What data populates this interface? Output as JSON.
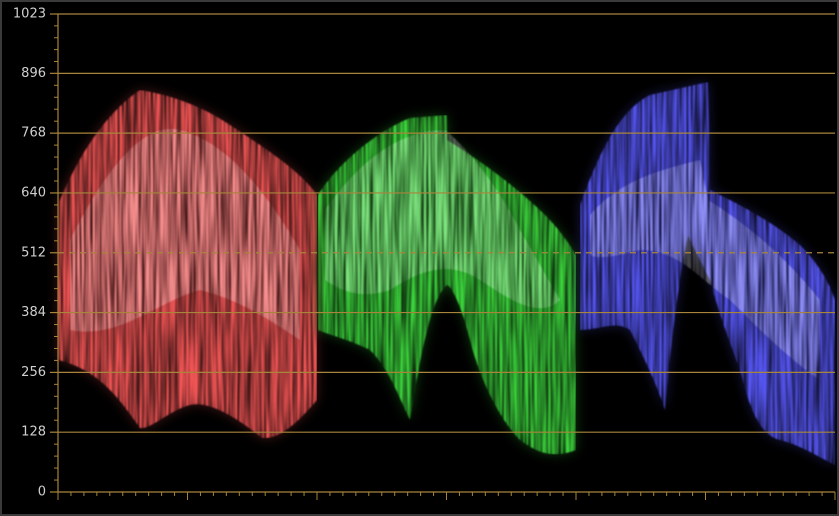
{
  "chart_data": {
    "type": "waveform",
    "ylim": [
      0,
      1023
    ],
    "yticks": [
      0,
      128,
      256,
      384,
      512,
      640,
      768,
      896,
      1023
    ],
    "dashed_tick": 512,
    "grid": true,
    "grid_color": "#a8853a",
    "channel_colors": [
      "#ff5a5a",
      "#3fe03f",
      "#5a5aff"
    ]
  }
}
